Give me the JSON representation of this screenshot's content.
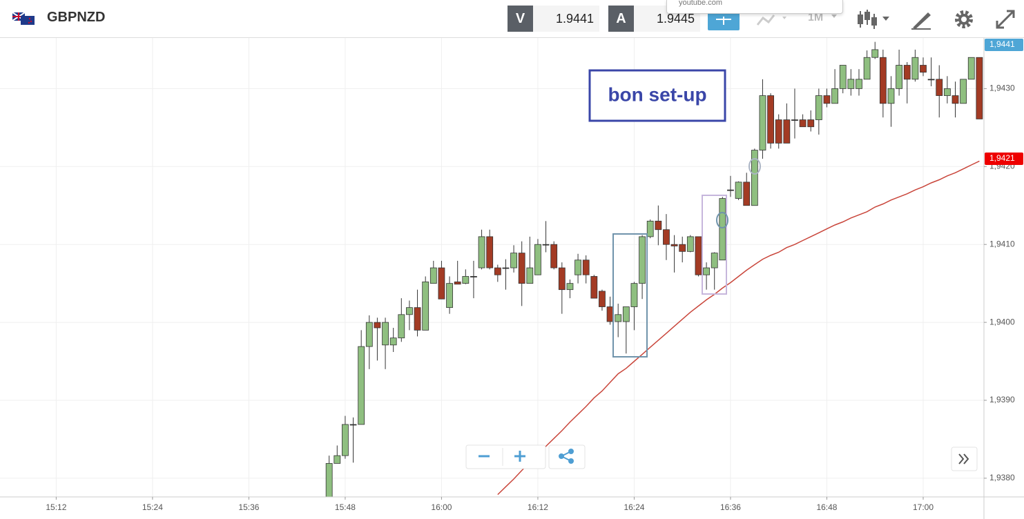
{
  "header": {
    "symbol": "GBPNZD",
    "sell_label": "V",
    "sell_price": "1.9441",
    "buy_label": "A",
    "buy_price": "1.9445",
    "timeframe": "1M",
    "popup": "youtube.com"
  },
  "chart_data": {
    "type": "candlestick",
    "annotation": "bon set-up",
    "x": [
      "15:46",
      "15:47",
      "15:48",
      "15:49",
      "15:50",
      "15:51",
      "15:52",
      "15:53",
      "15:54",
      "15:55",
      "15:56",
      "15:57",
      "15:58",
      "15:59",
      "16:00",
      "16:01",
      "16:02",
      "16:03",
      "16:04",
      "16:05",
      "16:06",
      "16:07",
      "16:08",
      "16:09",
      "16:10",
      "16:11",
      "16:12",
      "16:13",
      "16:14",
      "16:15",
      "16:16",
      "16:17",
      "16:18",
      "16:19",
      "16:20",
      "16:21",
      "16:22",
      "16:23",
      "16:24",
      "16:25",
      "16:26",
      "16:27",
      "16:28",
      "16:29",
      "16:30",
      "16:31",
      "16:32",
      "16:33",
      "16:34",
      "16:35",
      "16:36",
      "16:37",
      "16:38",
      "16:39",
      "16:40",
      "16:41",
      "16:42",
      "16:43",
      "16:44",
      "16:45",
      "16:46",
      "16:47",
      "16:48",
      "16:49",
      "16:50",
      "16:51",
      "16:52",
      "16:53",
      "16:54",
      "16:55",
      "16:56",
      "16:57",
      "16:58",
      "16:59",
      "17:00",
      "17:01",
      "17:02",
      "17:03",
      "17:04",
      "17:05",
      "17:06",
      "17:07"
    ],
    "open": [
      1.93776,
      1.93819,
      1.93829,
      1.93869,
      1.93869,
      1.93969,
      1.94,
      1.93971,
      1.93971,
      1.9398,
      1.9401,
      1.94019,
      1.9399,
      1.9405,
      1.9407,
      1.94019,
      1.94052,
      1.9405,
      1.94059,
      1.9407,
      1.9411,
      1.9407,
      1.9407,
      1.9407,
      1.94089,
      1.9405,
      1.94061,
      1.941,
      1.941,
      1.9407,
      1.94042,
      1.94061,
      1.9408,
      1.94059,
      1.9404,
      1.9402,
      1.94001,
      1.94001,
      1.9402,
      1.9405,
      1.9411,
      1.9413,
      1.94119,
      1.941,
      1.941,
      1.94091,
      1.9411,
      1.94061,
      1.9407,
      1.9408,
      1.9417,
      1.94159,
      1.9418,
      1.9415,
      1.94221,
      1.94291,
      1.9426,
      1.9426,
      1.9426,
      1.9426,
      1.9426,
      1.9426,
      1.94291,
      1.94281,
      1.943,
      1.943,
      1.943,
      1.94312,
      1.9434,
      1.9434,
      1.94281,
      1.943,
      1.9433,
      1.94312,
      1.9433,
      1.94312,
      1.94312,
      1.94291,
      1.94291,
      1.94281,
      1.94312,
      1.9434
    ],
    "high": [
      1.93829,
      1.93842,
      1.9388,
      1.93878,
      1.9399,
      1.94009,
      1.94006,
      1.94006,
      1.93993,
      1.94031,
      1.94028,
      1.94042,
      1.94059,
      1.94079,
      1.94079,
      1.94059,
      1.94079,
      1.94068,
      1.94079,
      1.94119,
      1.94119,
      1.94074,
      1.94081,
      1.94099,
      1.94104,
      1.9411,
      1.94107,
      1.9413,
      1.94104,
      1.94077,
      1.94055,
      1.94088,
      1.94086,
      1.94061,
      1.94042,
      1.94033,
      1.94024,
      1.9402,
      1.94052,
      1.94112,
      1.94132,
      1.9415,
      1.94139,
      1.94112,
      1.9411,
      1.94112,
      1.9411,
      1.94077,
      1.9409,
      1.94161,
      1.94188,
      1.94181,
      1.94192,
      1.94223,
      1.94312,
      1.94294,
      1.94267,
      1.94281,
      1.943,
      1.94267,
      1.94272,
      1.943,
      1.943,
      1.94325,
      1.9433,
      1.94325,
      1.94325,
      1.94349,
      1.9436,
      1.9435,
      1.94316,
      1.9435,
      1.94334,
      1.9435,
      1.9434,
      1.9434,
      1.9433,
      1.94316,
      1.94309,
      1.94312,
      1.9434,
      1.9434
    ],
    "low": [
      1.93776,
      1.93819,
      1.93825,
      1.9382,
      1.93869,
      1.9394,
      1.93951,
      1.9394,
      1.93962,
      1.93975,
      1.9399,
      1.93982,
      1.9399,
      1.9405,
      1.9403,
      1.94011,
      1.94049,
      1.94049,
      1.94031,
      1.94068,
      1.94068,
      1.94052,
      1.94042,
      1.94064,
      1.94021,
      1.9405,
      1.94061,
      1.9409,
      1.94068,
      1.94011,
      1.94031,
      1.9405,
      1.9405,
      1.94031,
      1.94015,
      1.93997,
      1.93981,
      1.9396,
      1.9399,
      1.9403,
      1.94108,
      1.94099,
      1.9408,
      1.94064,
      1.94077,
      1.9409,
      1.94059,
      1.94042,
      1.94042,
      1.9408,
      1.94161,
      1.94157,
      1.9415,
      1.9415,
      1.9421,
      1.94223,
      1.94223,
      1.9423,
      1.94236,
      1.94251,
      1.94245,
      1.94241,
      1.94276,
      1.94281,
      1.94294,
      1.94291,
      1.94291,
      1.94312,
      1.94338,
      1.94263,
      1.94251,
      1.94291,
      1.94281,
      1.94309,
      1.94316,
      1.94303,
      1.94263,
      1.94281,
      1.94263,
      1.94281,
      1.94312,
      1.94261
    ],
    "close": [
      1.93819,
      1.93829,
      1.93869,
      1.93869,
      1.93969,
      1.94,
      1.93993,
      1.94,
      1.9398,
      1.9401,
      1.94019,
      1.9399,
      1.94052,
      1.9407,
      1.9403,
      1.9405,
      1.94049,
      1.94059,
      1.94059,
      1.9411,
      1.9407,
      1.94061,
      1.9407,
      1.94089,
      1.9405,
      1.9407,
      1.941,
      1.941,
      1.9407,
      1.94042,
      1.9405,
      1.9408,
      1.94061,
      1.94031,
      1.9402,
      1.94001,
      1.9401,
      1.9402,
      1.9405,
      1.9411,
      1.9413,
      1.94119,
      1.941,
      1.94098,
      1.94091,
      1.9411,
      1.94061,
      1.9407,
      1.94089,
      1.94159,
      1.9417,
      1.9418,
      1.9415,
      1.94221,
      1.94291,
      1.9423,
      1.9423,
      1.9423,
      1.9426,
      1.94251,
      1.94251,
      1.94291,
      1.94281,
      1.943,
      1.9433,
      1.94312,
      1.94312,
      1.9434,
      1.9435,
      1.94281,
      1.943,
      1.9433,
      1.94312,
      1.9434,
      1.94321,
      1.94312,
      1.94291,
      1.943,
      1.94281,
      1.94312,
      1.9434,
      1.94261
    ],
    "up_color": "#8fbf80",
    "down_color": "#a33b24",
    "ma": {
      "color": "#c9453a",
      "values": [
        null,
        null,
        null,
        null,
        null,
        null,
        null,
        null,
        null,
        null,
        null,
        null,
        null,
        null,
        null,
        null,
        null,
        null,
        null,
        null,
        null,
        1.93779,
        1.93789,
        1.93799,
        1.9381,
        1.9382,
        1.9383,
        1.93841,
        1.93851,
        1.93861,
        1.93872,
        1.93882,
        1.93892,
        1.93903,
        1.93912,
        1.93923,
        1.93934,
        1.93941,
        1.9395,
        1.93959,
        1.93968,
        1.93977,
        1.93986,
        1.93995,
        1.94004,
        1.94013,
        1.94021,
        1.94029,
        1.94036,
        1.94044,
        1.94051,
        1.94059,
        1.94067,
        1.94074,
        1.94081,
        1.94086,
        1.9409,
        1.94096,
        1.941,
        1.94105,
        1.9411,
        1.94115,
        1.9412,
        1.94125,
        1.94129,
        1.94134,
        1.94138,
        1.94142,
        1.94148,
        1.94152,
        1.94157,
        1.94161,
        1.94165,
        1.9417,
        1.94174,
        1.94179,
        1.94183,
        1.94188,
        1.94192,
        1.94197,
        1.94202,
        1.94207
      ]
    },
    "price_tags": [
      {
        "value": 1.9441,
        "label": "1,9441",
        "color": "#4ea6d6"
      },
      {
        "value": 1.9421,
        "label": "1,9421",
        "color": "#ee0000"
      }
    ],
    "xlim": [
      "15:05",
      "17:08"
    ],
    "xticks": [
      "15:12",
      "15:24",
      "15:36",
      "15:48",
      "16:00",
      "16:12",
      "16:24",
      "16:36",
      "16:48",
      "17:00"
    ],
    "ylim": [
      1.93776,
      1.94365
    ],
    "yticks": [
      {
        "value": 1.938,
        "label": "1,9380"
      },
      {
        "value": 1.939,
        "label": "1,9390"
      },
      {
        "value": 1.94,
        "label": "1,9400"
      },
      {
        "value": 1.941,
        "label": "1,9410"
      },
      {
        "value": 1.942,
        "label": "1,9420"
      },
      {
        "value": 1.943,
        "label": "1,9430"
      }
    ],
    "grid": true
  }
}
